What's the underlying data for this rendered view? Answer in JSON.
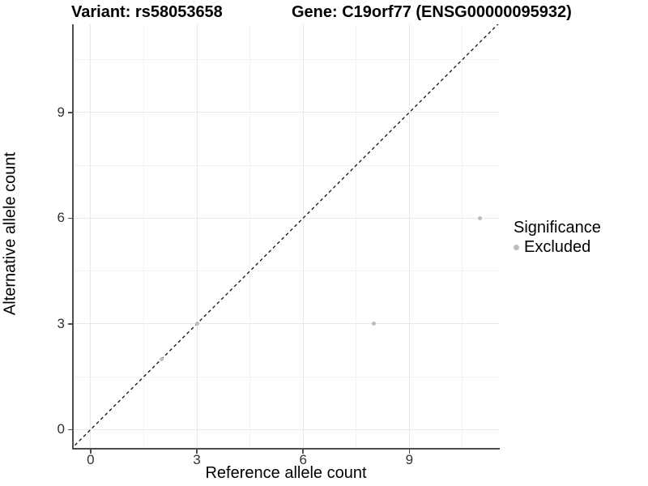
{
  "chart_data": {
    "type": "scatter",
    "title_left": "Variant: rs58053658",
    "title_right": "Gene: C19orf77 (ENSG00000095932)",
    "xlabel": "Reference allele count",
    "ylabel": "Alternative allele count",
    "x_ticks": [
      0,
      3,
      6,
      9
    ],
    "y_ticks": [
      0,
      3,
      6,
      9
    ],
    "xlim": [
      -0.5,
      11.53
    ],
    "ylim": [
      -0.52,
      11.5
    ],
    "grid": "major and minor gridlines on, light gray on white",
    "identity_line": {
      "equation": "y = x",
      "style": "dashed",
      "color": "#111111"
    },
    "series": [
      {
        "name": "Excluded",
        "color": "#bdbdbd",
        "points": [
          {
            "x": 2,
            "y": 2
          },
          {
            "x": 3,
            "y": 3
          },
          {
            "x": 8,
            "y": 3
          },
          {
            "x": 11,
            "y": 6
          }
        ]
      }
    ],
    "legend": {
      "title": "Significance",
      "position": "right",
      "entries": [
        {
          "label": "Excluded",
          "color": "#bdbdbd"
        }
      ]
    }
  },
  "colors": {
    "axis_line": "#4d4d4d",
    "tick_text": "#333333",
    "grid_major": "#e9e9e9",
    "grid_minor": "#f2f2f2",
    "point": "#bdbdbd",
    "background": "#ffffff"
  }
}
